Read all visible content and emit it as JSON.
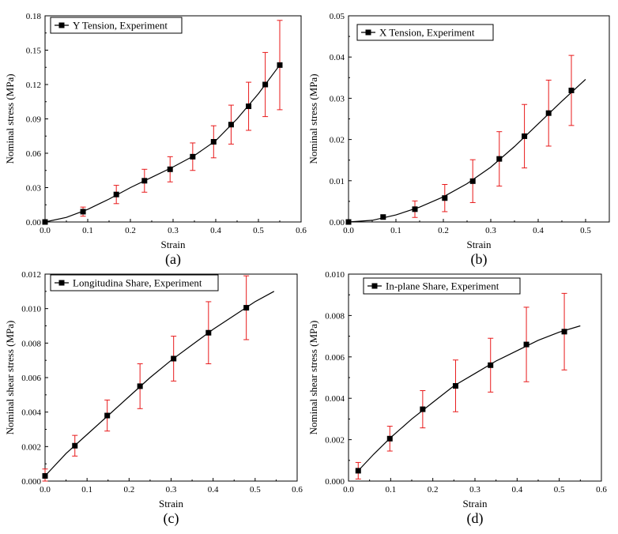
{
  "colors": {
    "line": "#000000",
    "marker": "#000000",
    "errorbar": "#e8191a",
    "axis": "#000000",
    "background": "#ffffff"
  },
  "chart_data": [
    {
      "type": "line",
      "panel_label": "(a)",
      "legend": "Y Tension, Experiment",
      "legend_position": "top-left",
      "xlabel": "Strain",
      "ylabel": "Nominal stress (MPa)",
      "xlim": [
        0,
        0.6
      ],
      "ylim": [
        0,
        0.18
      ],
      "xticks": [
        "0.0",
        "0.1",
        "0.2",
        "0.3",
        "0.4",
        "0.5",
        "0.6"
      ],
      "yticks": [
        "0.00",
        "0.03",
        "0.06",
        "0.09",
        "0.12",
        "0.15",
        "0.18"
      ],
      "points": [
        {
          "x": 0.0,
          "y": 0.0,
          "err": 0
        },
        {
          "x": 0.089,
          "y": 0.009,
          "err": 0.004
        },
        {
          "x": 0.167,
          "y": 0.024,
          "err": 0.008
        },
        {
          "x": 0.233,
          "y": 0.036,
          "err": 0.01
        },
        {
          "x": 0.293,
          "y": 0.046,
          "err": 0.011
        },
        {
          "x": 0.346,
          "y": 0.057,
          "err": 0.012
        },
        {
          "x": 0.395,
          "y": 0.07,
          "err": 0.014
        },
        {
          "x": 0.436,
          "y": 0.085,
          "err": 0.017
        },
        {
          "x": 0.477,
          "y": 0.101,
          "err": 0.021
        },
        {
          "x": 0.516,
          "y": 0.12,
          "err": 0.028
        },
        {
          "x": 0.55,
          "y": 0.137,
          "err": 0.039
        }
      ],
      "fit": [
        [
          0,
          0
        ],
        [
          0.05,
          0.004
        ],
        [
          0.1,
          0.011
        ],
        [
          0.15,
          0.02
        ],
        [
          0.2,
          0.03
        ],
        [
          0.25,
          0.039
        ],
        [
          0.3,
          0.048
        ],
        [
          0.35,
          0.058
        ],
        [
          0.4,
          0.071
        ],
        [
          0.45,
          0.09
        ],
        [
          0.5,
          0.112
        ],
        [
          0.55,
          0.137
        ]
      ]
    },
    {
      "type": "line",
      "panel_label": "(b)",
      "legend": "X Tension, Experiment",
      "legend_position": "top-left",
      "xlabel": "Strain",
      "ylabel": "Nominal stress (MPa)",
      "xlim": [
        0,
        0.55
      ],
      "ylim": [
        0,
        0.05
      ],
      "xticks": [
        "0.0",
        "0.1",
        "0.2",
        "0.3",
        "0.4",
        "0.5"
      ],
      "yticks": [
        "0.00",
        "0.01",
        "0.02",
        "0.03",
        "0.04",
        "0.05"
      ],
      "points": [
        {
          "x": 0.0,
          "y": 0.0,
          "err": 0
        },
        {
          "x": 0.073,
          "y": 0.0012,
          "err": 0
        },
        {
          "x": 0.14,
          "y": 0.0031,
          "err": 0.002
        },
        {
          "x": 0.203,
          "y": 0.0058,
          "err": 0.0033
        },
        {
          "x": 0.262,
          "y": 0.0099,
          "err": 0.0052
        },
        {
          "x": 0.318,
          "y": 0.0153,
          "err": 0.0066
        },
        {
          "x": 0.371,
          "y": 0.0208,
          "err": 0.0077
        },
        {
          "x": 0.422,
          "y": 0.0264,
          "err": 0.008
        },
        {
          "x": 0.47,
          "y": 0.0319,
          "err": 0.0085
        }
      ],
      "fit": [
        [
          0,
          0
        ],
        [
          0.05,
          0.0004
        ],
        [
          0.1,
          0.0017
        ],
        [
          0.15,
          0.0036
        ],
        [
          0.2,
          0.0061
        ],
        [
          0.25,
          0.0093
        ],
        [
          0.3,
          0.0133
        ],
        [
          0.35,
          0.0183
        ],
        [
          0.4,
          0.0238
        ],
        [
          0.45,
          0.0293
        ],
        [
          0.5,
          0.0346
        ]
      ]
    },
    {
      "type": "line",
      "panel_label": "(c)",
      "legend": "Longitudina Share, Experiment",
      "legend_position": "top-left",
      "xlabel": "Strain",
      "ylabel": "Nominal shear stress (MPa)",
      "xlim": [
        0,
        0.6
      ],
      "ylim": [
        0,
        0.012
      ],
      "xticks": [
        "0.0",
        "0.1",
        "0.2",
        "0.3",
        "0.4",
        "0.5",
        "0.6"
      ],
      "yticks": [
        "0.000",
        "0.002",
        "0.004",
        "0.006",
        "0.008",
        "0.010",
        "0.012"
      ],
      "points": [
        {
          "x": 0.0,
          "y": 0.0003,
          "err": 0.0004
        },
        {
          "x": 0.071,
          "y": 0.00205,
          "err": 0.0006
        },
        {
          "x": 0.148,
          "y": 0.0038,
          "err": 0.0009
        },
        {
          "x": 0.226,
          "y": 0.0055,
          "err": 0.0013
        },
        {
          "x": 0.306,
          "y": 0.0071,
          "err": 0.0013
        },
        {
          "x": 0.389,
          "y": 0.0086,
          "err": 0.0018
        },
        {
          "x": 0.479,
          "y": 0.01005,
          "err": 0.00185
        }
      ],
      "fit": [
        [
          0,
          0.0003
        ],
        [
          0.05,
          0.0016
        ],
        [
          0.1,
          0.0027
        ],
        [
          0.15,
          0.0038
        ],
        [
          0.2,
          0.0049
        ],
        [
          0.25,
          0.006
        ],
        [
          0.3,
          0.007
        ],
        [
          0.35,
          0.0079
        ],
        [
          0.4,
          0.0088
        ],
        [
          0.45,
          0.0096
        ],
        [
          0.5,
          0.0104
        ],
        [
          0.545,
          0.011
        ]
      ]
    },
    {
      "type": "line",
      "panel_label": "(d)",
      "legend": "In-plane Share, Experiment",
      "legend_position": "top-left",
      "xlabel": "Strain",
      "ylabel": "Nominal shear stress (MPa)",
      "xlim": [
        0,
        0.6
      ],
      "ylim": [
        0,
        0.01
      ],
      "xticks": [
        "0.0",
        "0.1",
        "0.2",
        "0.3",
        "0.4",
        "0.5",
        "0.6"
      ],
      "yticks": [
        "0.000",
        "0.002",
        "0.004",
        "0.006",
        "0.008",
        "0.010"
      ],
      "points": [
        {
          "x": 0.023,
          "y": 0.0005,
          "err": 0.0004
        },
        {
          "x": 0.098,
          "y": 0.00205,
          "err": 0.0006
        },
        {
          "x": 0.176,
          "y": 0.00347,
          "err": 0.0009
        },
        {
          "x": 0.254,
          "y": 0.0046,
          "err": 0.00125
        },
        {
          "x": 0.337,
          "y": 0.0056,
          "err": 0.0013
        },
        {
          "x": 0.422,
          "y": 0.0066,
          "err": 0.0018
        },
        {
          "x": 0.512,
          "y": 0.00722,
          "err": 0.00185
        }
      ],
      "fit": [
        [
          0.023,
          0.0005
        ],
        [
          0.06,
          0.0013
        ],
        [
          0.1,
          0.0021
        ],
        [
          0.15,
          0.003
        ],
        [
          0.2,
          0.0038
        ],
        [
          0.25,
          0.0046
        ],
        [
          0.3,
          0.0052
        ],
        [
          0.35,
          0.0058
        ],
        [
          0.4,
          0.0063
        ],
        [
          0.45,
          0.0068
        ],
        [
          0.5,
          0.0072
        ],
        [
          0.55,
          0.0075
        ]
      ]
    }
  ]
}
